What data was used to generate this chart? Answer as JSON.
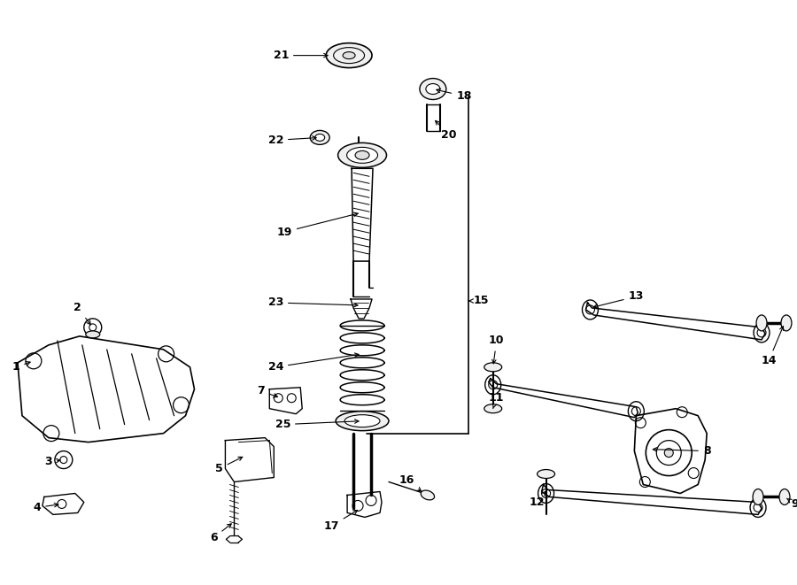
{
  "bg_color": "#ffffff",
  "lc": "#000000",
  "fig_width": 9.0,
  "fig_height": 6.61,
  "dpi": 100
}
